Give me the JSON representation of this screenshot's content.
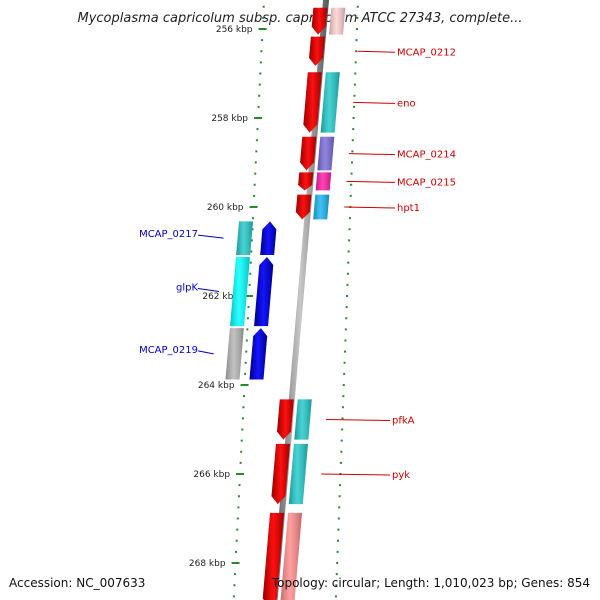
{
  "title": "Mycoplasma capricolum subsp. capricolum ATCC 27343, complete...",
  "footer": {
    "accession": "Accession: NC_007633",
    "stats": "Topology: circular; Length: 1,010,023 bp; Genes: 854"
  },
  "ticks": [
    {
      "kb": 256,
      "label": "256 kbp"
    },
    {
      "kb": 258,
      "label": "258 kbp"
    },
    {
      "kb": 260,
      "label": "260 kbp"
    },
    {
      "kb": 262,
      "label": "262 kbp"
    },
    {
      "kb": 264,
      "label": "264 kbp"
    },
    {
      "kb": 266,
      "label": "266 kbp"
    },
    {
      "kb": 268,
      "label": "268 kbp"
    }
  ],
  "genes": [
    {
      "id": "mcap0211",
      "name": "",
      "strand": "+",
      "start_kb": 255.5,
      "end_kb": 256.15,
      "cog_color": "#ffd0d0"
    },
    {
      "id": "mcap0212",
      "name": "MCAP_0212",
      "strand": "+",
      "start_kb": 256.15,
      "end_kb": 256.85,
      "cog_color": ""
    },
    {
      "id": "eno",
      "name": "eno",
      "strand": "+",
      "start_kb": 256.95,
      "end_kb": 258.35,
      "cog_color": "#22c8c8"
    },
    {
      "id": "mcap0214",
      "name": "MCAP_0214",
      "strand": "+",
      "start_kb": 258.4,
      "end_kb": 259.2,
      "cog_color": "#7a6ad8"
    },
    {
      "id": "mcap0215",
      "name": "MCAP_0215",
      "strand": "+",
      "start_kb": 259.2,
      "end_kb": 259.65,
      "cog_color": "#ff1ca8"
    },
    {
      "id": "hpt1",
      "name": "hpt1",
      "strand": "+",
      "start_kb": 259.7,
      "end_kb": 260.3,
      "cog_color": "#1ab4f0"
    },
    {
      "id": "mcap0217",
      "name": "MCAP_0217",
      "strand": "-",
      "start_kb": 260.3,
      "end_kb": 261.1,
      "cog_color": "#22c8c8"
    },
    {
      "id": "glpk",
      "name": "glpK",
      "strand": "-",
      "start_kb": 261.1,
      "end_kb": 262.7,
      "cog_color": "#00ffff"
    },
    {
      "id": "mcap0219",
      "name": "MCAP_0219",
      "strand": "-",
      "start_kb": 262.7,
      "end_kb": 263.9,
      "cog_color": "#b4b4b4"
    },
    {
      "id": "pfka",
      "name": "pfkA",
      "strand": "+",
      "start_kb": 264.3,
      "end_kb": 265.25,
      "cog_color": "#22c8c8"
    },
    {
      "id": "pyk",
      "name": "pyk",
      "strand": "+",
      "start_kb": 265.3,
      "end_kb": 266.7,
      "cog_color": "#22c8c8"
    },
    {
      "id": "next",
      "name": "",
      "strand": "+",
      "start_kb": 266.85,
      "end_kb": 269.0,
      "cog_color": "#ff8a8a"
    }
  ],
  "colors": {
    "forward": "#ee0000",
    "reverse": "#0000ee",
    "backbone": "#8c8c8c",
    "ticks": "#2a8a2a",
    "forward_label": "#cc0000",
    "reverse_label": "#0000bb"
  }
}
